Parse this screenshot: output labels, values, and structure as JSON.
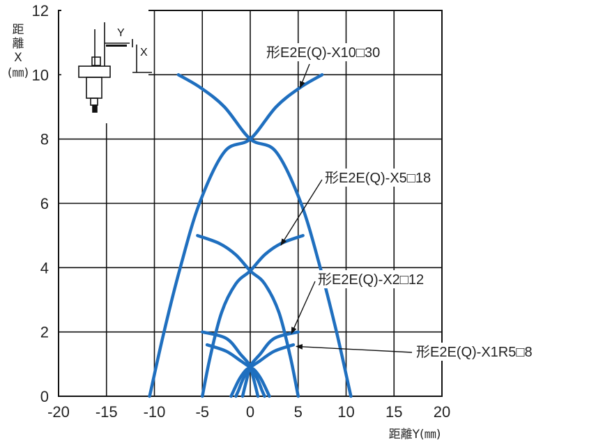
{
  "chart_data": {
    "type": "line",
    "title": "",
    "xlabel": "距離Y(㎜)",
    "ylabel": [
      "距",
      "離",
      "X",
      "(㎜)"
    ],
    "xlim": [
      -20,
      20
    ],
    "ylim": [
      0,
      12
    ],
    "x_ticks": [
      "-20",
      "-15",
      "-10",
      "-5",
      "0",
      "5",
      "10",
      "15",
      "20"
    ],
    "y_ticks": [
      "0",
      "2",
      "4",
      "6",
      "8",
      "10",
      "12"
    ],
    "grid": true,
    "line_color": "#1f6fbf",
    "series": [
      {
        "name": "形E2E(Q)-X10□30",
        "curves": [
          [
            [
              -10.5,
              0
            ],
            [
              -9,
              2
            ],
            [
              -7.3,
              4
            ],
            [
              -5.3,
              6
            ],
            [
              -2.7,
              7.6
            ],
            [
              0,
              8
            ],
            [
              2.7,
              9
            ],
            [
              5.2,
              9.6
            ],
            [
              7.5,
              10
            ]
          ],
          [
            [
              10.5,
              0
            ],
            [
              9,
              2
            ],
            [
              7.3,
              4
            ],
            [
              5.3,
              6
            ],
            [
              2.7,
              7.6
            ],
            [
              0,
              8
            ],
            [
              -2.7,
              9
            ],
            [
              -5.2,
              9.6
            ],
            [
              -7.5,
              10
            ]
          ]
        ]
      },
      {
        "name": "形E2E(Q)-X5□18",
        "curves": [
          [
            [
              -5,
              0
            ],
            [
              -4.2,
              1.2
            ],
            [
              -3,
              2.6
            ],
            [
              -1.5,
              3.5
            ],
            [
              0,
              3.9
            ],
            [
              1.5,
              4.4
            ],
            [
              3.2,
              4.75
            ],
            [
              5.5,
              5
            ]
          ],
          [
            [
              5,
              0
            ],
            [
              4.2,
              1.2
            ],
            [
              3,
              2.6
            ],
            [
              1.5,
              3.5
            ],
            [
              0,
              3.9
            ],
            [
              -1.5,
              4.4
            ],
            [
              -3.2,
              4.75
            ],
            [
              -5.5,
              5
            ]
          ]
        ]
      },
      {
        "name": "形E2E(Q)-X2□12",
        "curves": [
          [
            [
              -5,
              2
            ],
            [
              -2.5,
              1.8
            ],
            [
              -1,
              1.3
            ],
            [
              0,
              0.95
            ],
            [
              0.8,
              0.5
            ],
            [
              1.2,
              0.2
            ],
            [
              1.5,
              0
            ]
          ],
          [
            [
              5,
              2
            ],
            [
              2.5,
              1.8
            ],
            [
              1,
              1.3
            ],
            [
              0,
              0.95
            ],
            [
              -0.8,
              0.5
            ],
            [
              -1.2,
              0.2
            ],
            [
              -1.5,
              0
            ]
          ]
        ]
      },
      {
        "name": "形E2E(Q)-X1R5□8",
        "curves": [
          [
            [
              -2,
              0
            ],
            [
              -1.2,
              0.5
            ],
            [
              -0.5,
              0.8
            ],
            [
              0,
              0.9
            ],
            [
              1,
              1.1
            ],
            [
              2.5,
              1.4
            ],
            [
              4.5,
              1.6
            ]
          ],
          [
            [
              2,
              0
            ],
            [
              1.2,
              0.5
            ],
            [
              0.5,
              0.8
            ],
            [
              0,
              0.9
            ],
            [
              -1,
              1.1
            ],
            [
              -2.5,
              1.4
            ],
            [
              -4.5,
              1.6
            ]
          ],
          [
            [
              -0.8,
              0
            ],
            [
              -0.3,
              0.6
            ],
            [
              0,
              0.9
            ],
            [
              0.3,
              0.6
            ],
            [
              0.8,
              0
            ]
          ]
        ]
      }
    ],
    "annotations": [
      {
        "text": "形E2E(Q)-X10□30",
        "target": [
          5.2,
          9.6
        ]
      },
      {
        "text": "形E2E(Q)-X5□18",
        "target": [
          3.2,
          4.7
        ]
      },
      {
        "text": "形E2E(Q)-X2□12",
        "target": [
          4.3,
          1.95
        ]
      },
      {
        "text": "形E2E(Q)-X1R5□8",
        "target": [
          4.8,
          1.55
        ]
      }
    ],
    "inset_labels": {
      "y": "Y",
      "x": "X"
    }
  }
}
